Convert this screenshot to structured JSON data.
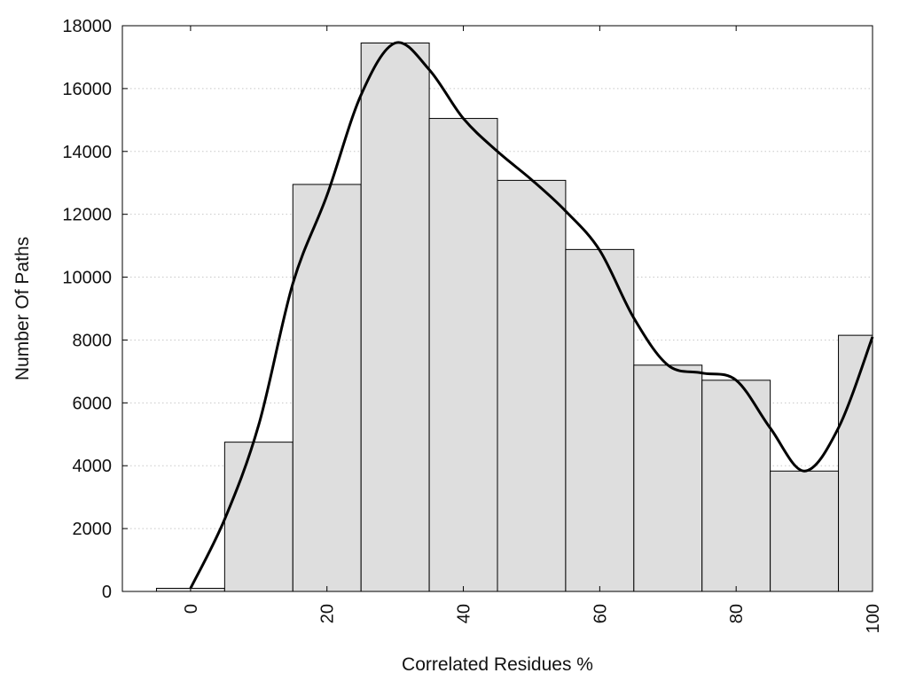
{
  "chart_data": {
    "type": "bar",
    "xlabel": "Correlated Residues %",
    "ylabel": "Number Of Paths",
    "xlim": [
      -10,
      100
    ],
    "ylim": [
      0,
      18000
    ],
    "x_ticks": [
      0,
      20,
      40,
      60,
      80,
      100
    ],
    "y_ticks": [
      0,
      2000,
      4000,
      6000,
      8000,
      10000,
      12000,
      14000,
      16000,
      18000
    ],
    "grid": "horizontal dotted",
    "bin_width": 10,
    "bins": [
      {
        "center": 0,
        "value": 100
      },
      {
        "center": 10,
        "value": 4750
      },
      {
        "center": 20,
        "value": 12950
      },
      {
        "center": 30,
        "value": 17450
      },
      {
        "center": 40,
        "value": 15050
      },
      {
        "center": 50,
        "value": 13080
      },
      {
        "center": 60,
        "value": 10880
      },
      {
        "center": 70,
        "value": 7200
      },
      {
        "center": 80,
        "value": 6720
      },
      {
        "center": 90,
        "value": 3830
      },
      {
        "center": 100,
        "value": 8150
      }
    ],
    "curve": {
      "x": [
        0,
        5,
        10,
        15,
        20,
        25,
        30,
        35,
        40,
        45,
        50,
        55,
        60,
        65,
        70,
        75,
        80,
        85,
        90,
        95,
        100
      ],
      "y": [
        100,
        2300,
        5300,
        9800,
        12600,
        15800,
        17450,
        16600,
        15050,
        14000,
        13100,
        12100,
        10850,
        8700,
        7200,
        6950,
        6720,
        5200,
        3830,
        5200,
        8100
      ]
    },
    "colors": {
      "bar_fill": "#dedede",
      "bar_stroke": "#000000",
      "curve": "#000000",
      "grid": "#c8c8c8"
    }
  }
}
